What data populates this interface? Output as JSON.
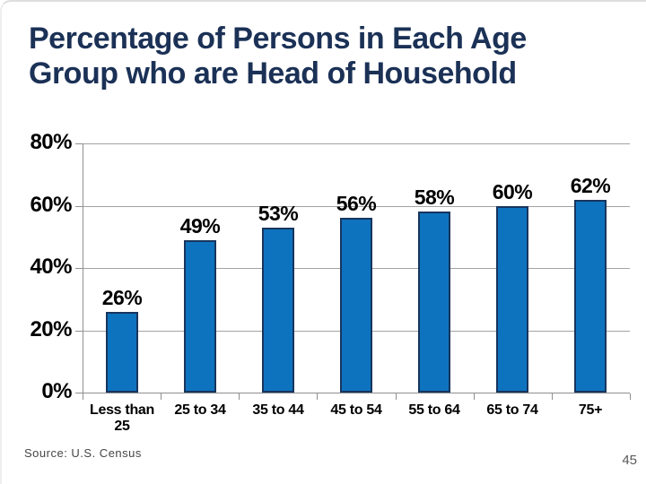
{
  "title": "Percentage of Persons in Each Age Group who are Head of Household",
  "source_text": "Source:  U.S. Census",
  "page_number": "45",
  "colors": {
    "title": "#1b3156",
    "bar_fill": "#0e73be",
    "bar_border": "#17355e",
    "gridline": "#a3a3a3",
    "axis": "#8f8f8f",
    "label_text": "#000000",
    "source_text": "#454545",
    "page_number": "#595959"
  },
  "chart_data": {
    "type": "bar",
    "title": "",
    "xlabel": "",
    "ylabel": "",
    "categories": [
      "Less than 25",
      "25 to 34",
      "35 to 44",
      "45 to 54",
      "55 to 64",
      "65 to 74",
      "75+"
    ],
    "values": [
      26,
      49,
      53,
      56,
      58,
      60,
      62
    ],
    "value_labels": [
      "26%",
      "49%",
      "53%",
      "56%",
      "58%",
      "60%",
      "62%"
    ],
    "ylim": [
      0,
      80
    ],
    "yticks": [
      0,
      20,
      40,
      60,
      80
    ],
    "ytick_labels": [
      "0%",
      "20%",
      "40%",
      "60%",
      "80%"
    ],
    "grid": true,
    "legend": "none"
  }
}
